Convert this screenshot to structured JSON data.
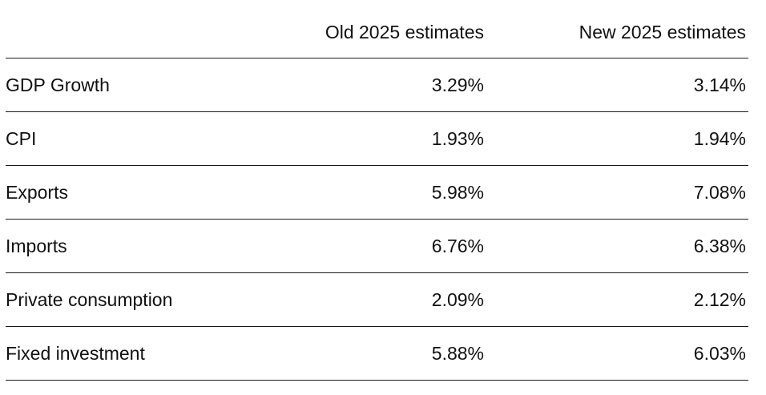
{
  "chart_data": {
    "type": "table",
    "columns": [
      "",
      "Old 2025 estimates",
      "New 2025 estimates"
    ],
    "rows": [
      {
        "label": "GDP Growth",
        "old": "3.29%",
        "new": "3.14%"
      },
      {
        "label": "CPI",
        "old": "1.93%",
        "new": "1.94%"
      },
      {
        "label": "Exports",
        "old": "5.98%",
        "new": "7.08%"
      },
      {
        "label": "Imports",
        "old": "6.76%",
        "new": "6.38%"
      },
      {
        "label": "Private consumption",
        "old": "2.09%",
        "new": "2.12%"
      },
      {
        "label": "Fixed investment",
        "old": "5.88%",
        "new": "6.03%"
      }
    ]
  }
}
